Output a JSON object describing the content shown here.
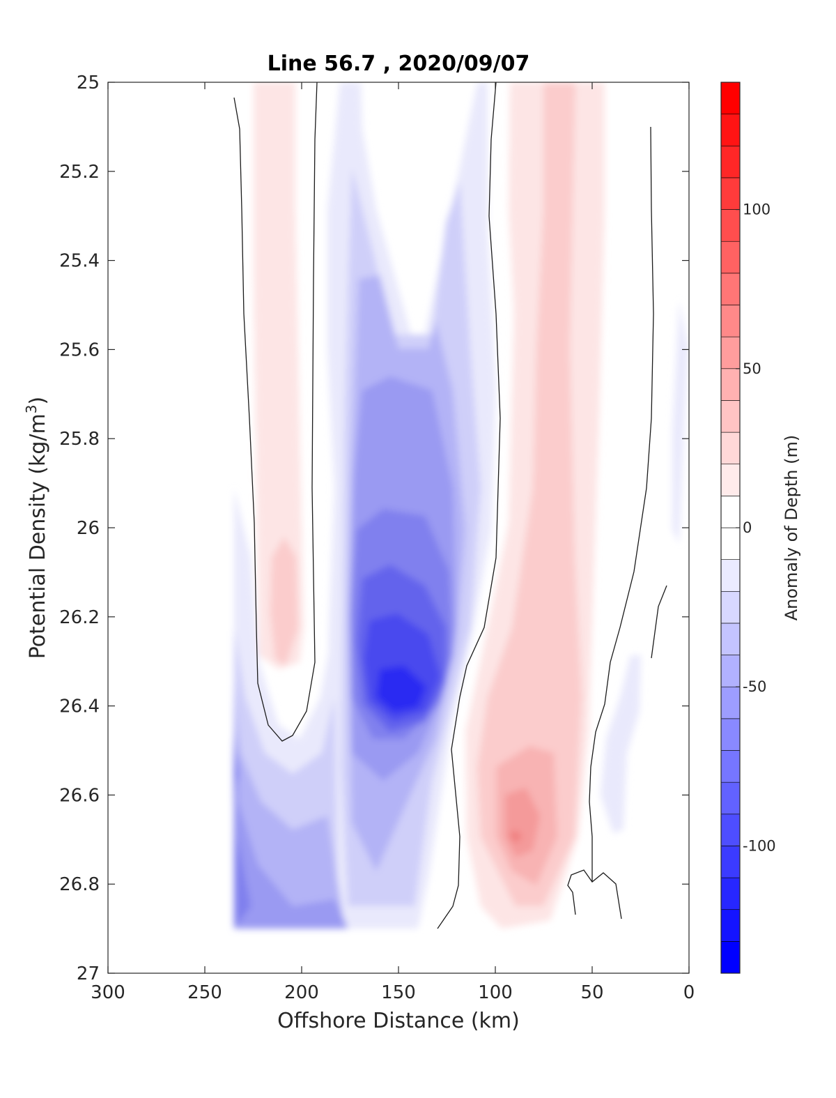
{
  "chart_data": {
    "type": "heatmap",
    "subtype": "filled-contour",
    "title": "Line 56.7 , 2020/09/07",
    "xlabel": "Offshore Distance (km)",
    "ylabel_main": "Potential Density (kg/m",
    "ylabel_sup": "3",
    "ylabel_end": ")",
    "x_reversed": true,
    "xlim": [
      300,
      0
    ],
    "ylim": [
      25,
      27
    ],
    "y_reversed": true,
    "x_ticks": [
      "300",
      "250",
      "200",
      "150",
      "100",
      "50",
      "0"
    ],
    "x_tick_values": [
      300,
      250,
      200,
      150,
      100,
      50,
      0
    ],
    "y_ticks": [
      "25",
      "25.2",
      "25.4",
      "25.6",
      "25.8",
      "26",
      "26.2",
      "26.4",
      "26.6",
      "26.8",
      "27"
    ],
    "y_tick_values": [
      25,
      25.2,
      25.4,
      25.6,
      25.8,
      26,
      26.2,
      26.4,
      26.6,
      26.8,
      27
    ],
    "data_extent_y": [
      25,
      26.9
    ],
    "colorbar": {
      "label": "Anomaly of Depth (m)",
      "ticks": [
        "100",
        "50",
        "0",
        "-50",
        "-100"
      ],
      "tick_values": [
        100,
        50,
        0,
        -50,
        -100
      ],
      "range": [
        -140,
        140
      ],
      "level_step": 10,
      "colormap": "blue-white-red",
      "low_color": "#0000ff",
      "high_color": "#ff0000"
    },
    "features": [
      {
        "kind": "positive-anomaly",
        "x_center": 210,
        "y_center": 26.2,
        "peak": 20
      },
      {
        "kind": "negative-anomaly",
        "x_center": 150,
        "y_center": 26.4,
        "peak": -120
      },
      {
        "kind": "negative-anomaly",
        "x_center": 235,
        "y_center": 26.5,
        "peak": -80
      },
      {
        "kind": "positive-anomaly",
        "x_center": 90,
        "y_center": 26.7,
        "peak": 40
      }
    ]
  }
}
